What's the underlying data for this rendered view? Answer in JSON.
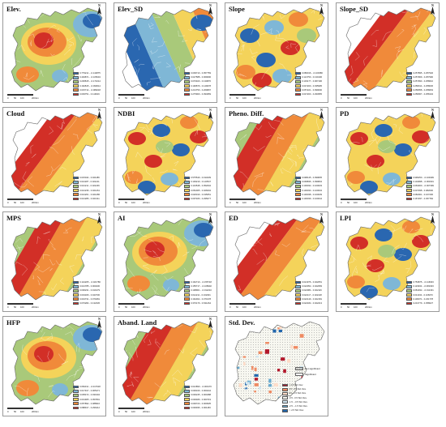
{
  "panels": [
    {
      "title": "Elev.",
      "palette": "warm_center",
      "legend": [
        "0.779211 - -0.142875",
        "0.494871 - -0.105034",
        "0.236815 - -0.171014",
        "0.162815 - -0.090614",
        "0.015714 - -0.089218",
        "0.093751 - 0.119016"
      ]
    },
    {
      "title": "Elev_SD",
      "palette": "cool_west",
      "legend": [
        "0.009710 - 0.057759",
        "0.027588 - 0.069096",
        "0.070400 - 0.130870",
        "0.190879 - 0.149078",
        "0.213750 - 0.269897",
        "0.275900 - 0.394959"
      ]
    },
    {
      "title": "Slope",
      "palette": "mixed_blue",
      "legend": [
        "0.086016 - -0.100386",
        "0.121753 - 0.130196",
        "0.133177 - 0.067196",
        "0.047200 - 0.035995",
        "0.057221 - 0.099000",
        "0.047203 - 0.293955"
      ]
    },
    {
      "title": "Slope_SD",
      "palette": "diag_red_sw",
      "legend": [
        "0.257895 - 0.257946",
        "0.257969 - 0.257990",
        "0.257993 - 0.258010",
        "0.258014 - 0.258036",
        "0.258058 - 0.258063",
        "0.258067 - 0.258104"
      ]
    },
    {
      "title": "Cloud",
      "palette": "diag_red_sw",
      "legend": [
        "0.015044 - 0.021186",
        "0.021187 - 0.021211",
        "0.021211 - 0.021236",
        "0.021236 - 0.021261",
        "0.021261 - 0.021286",
        "0.021286 - 0.021311"
      ]
    },
    {
      "title": "NDBI",
      "palette": "mixed_red",
      "legend": [
        "0.575549 - 0.193239",
        "0.193219 - 0.143547",
        "0.143548 - 0.052004",
        "0.052005 - 0.026004",
        "0.026019 - 0.195051",
        "0.097180 - 0.295077"
      ]
    },
    {
      "title": "Pheno. Diff.",
      "palette": "cool_east",
      "legend": [
        "0.098145 - 0.099835",
        "0.099836 - 0.099834",
        "0.100032 - 0.100033",
        "0.100033 - 0.100034",
        "0.100038 - 0.100039",
        "0.100039 - 0.100044"
      ]
    },
    {
      "title": "PD",
      "palette": "mixed_red",
      "legend": [
        "0.996250 - -0.104999",
        "0.104998 - -0.063301",
        "0.063300 - -0.007399",
        "0.007398 - 0.082000",
        "0.082001 - 0.167296",
        "0.167297 - 0.457784"
      ]
    },
    {
      "title": "MPS",
      "palette": "cool_east",
      "legend": [
        "0.144205 - -0.021786",
        "0.021785 - 0.000230",
        "0.000231 - 0.019179",
        "0.019180 - 0.043730",
        "0.043731 - 0.070281",
        "0.070282 - 0.132345"
      ]
    },
    {
      "title": "AI",
      "palette": "warm_center",
      "legend": [
        "0.162710 - -0.155718",
        "0.155717 - -0.108902",
        "0.108901 - -0.012210",
        "0.012211 - 0.162301",
        "0.162302 - 0.370178",
        "0.370179 - 0.631264"
      ]
    },
    {
      "title": "ED",
      "palette": "diag_red_sw",
      "legend": [
        "0.021976 - 0.022051",
        "0.022052 - 0.022083",
        "0.022084 - 0.022116",
        "0.022117 - 0.022148",
        "0.022149 - 0.022181",
        "0.022182 - 0.022213"
      ]
    },
    {
      "title": "LPI",
      "palette": "mixed_red",
      "legend": [
        "0.753875 - -0.116933",
        "0.116932 - -0.081933",
        "0.081932 - -0.011331",
        "0.011332 - 0.106070",
        "0.106071 - 0.231778",
        "0.231779 - 0.358027"
      ]
    },
    {
      "title": "HFP",
      "palette": "warm_center",
      "legend": [
        "0.084311 - -0.017918",
        "0.017917 - 0.005471",
        "0.005472 - 0.031904",
        "0.031905 - 0.057891",
        "0.057892 - 0.088916",
        "0.088917 - 0.296412"
      ]
    },
    {
      "title": "Aband. Land",
      "palette": "cool_east",
      "legend": [
        "0.021890 - -0.000170",
        "0.000169 - 0.000244",
        "0.000245 - 0.000488",
        "0.000489 - 0.000719",
        "0.000720 - 0.000935",
        "0.000936 - 0.001183"
      ]
    }
  ],
  "stdpanel": {
    "title": "Std. Dev.",
    "legend": [
      "> 2.5 Std. Dev.",
      "1.5 - 2.5 Std. Dev.",
      "0.5 - 1.5 Std. Dev.",
      "-0.5 - 0.5 Std. Dev.",
      "-1.5 - -0.5 Std. Dev.",
      "-2.5 - -1.5 Std. Dev.",
      "< -2.5 Std. Dev."
    ],
    "sig": [
      "Not significant",
      "Significant"
    ]
  },
  "scale_labels": [
    "0",
    "50",
    "100",
    "200"
  ],
  "scale_unit": "km",
  "north_label": "N",
  "colors": {
    "ramp": [
      "#2a67b0",
      "#7fb7d6",
      "#a9c97a",
      "#f4d35a",
      "#f08a3a",
      "#d22f27"
    ],
    "std": [
      "#b2182b",
      "#ef8a62",
      "#fddbc7",
      "#f7f7f0",
      "#d1e5f0",
      "#67a9cf",
      "#2166ac"
    ],
    "boundary": "#ffffff"
  }
}
